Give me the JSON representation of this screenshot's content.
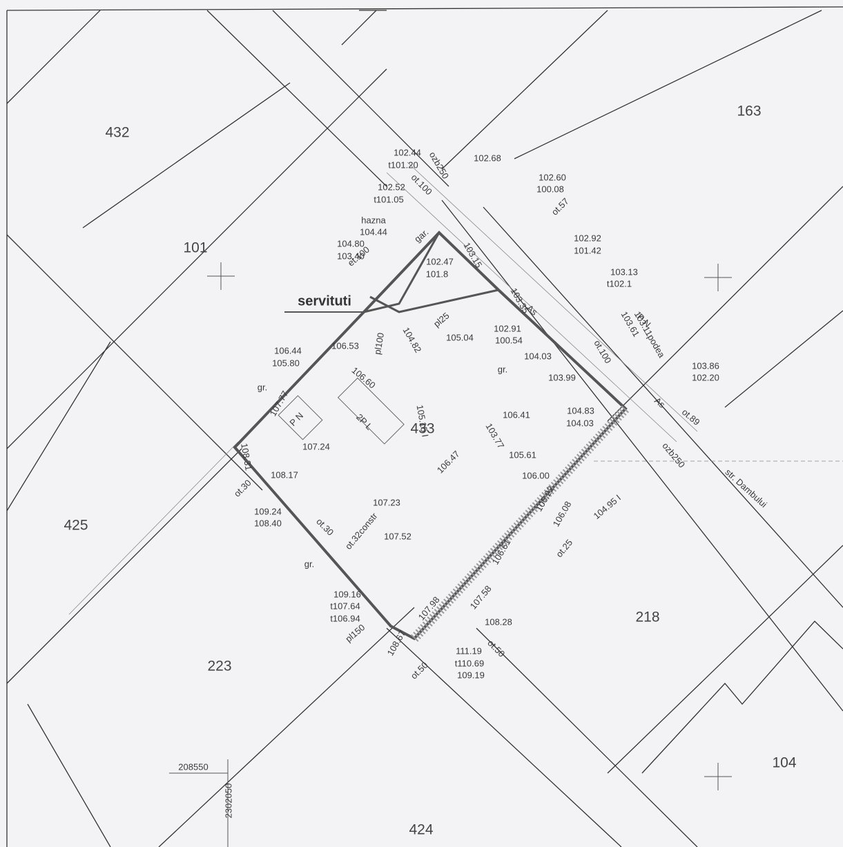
{
  "parcels": [
    "432",
    "163",
    "101",
    "433",
    "425",
    "218",
    "223",
    "104",
    "424"
  ],
  "servitude": "servituti",
  "annotations": [
    "102.44",
    "t101.20",
    "102.68",
    "102.60",
    "100.08",
    "102.52",
    "t101.05",
    "hazna",
    "104.44",
    "104.80",
    "103.40",
    "102.47",
    "101.8",
    "102.92",
    "101.42",
    "103.13",
    "t102.1",
    "102.91",
    "100.54",
    "105.04",
    "106.53",
    "106.44",
    "105.80",
    "104.03",
    "106.60",
    "103.99",
    "103.86",
    "102.20",
    "104.83",
    "104.03",
    "106.41",
    "107.24",
    "105.61",
    "108.17",
    "106.00",
    "109.24",
    "108.40",
    "107.23",
    "107.52",
    "109.16",
    "t107.64",
    "t106.94",
    "108.28",
    "111.19",
    "t110.69",
    "109.19",
    "208550",
    "2302050",
    "gr.",
    "gr.",
    "gr.",
    "ot.30",
    "ot.30",
    "ot.50",
    "ot.50",
    "ot.89",
    "str. Dambului",
    "P N",
    "2P L",
    "P N",
    "ozb250",
    "ot.100",
    "ot.57",
    "103.15",
    "104.82",
    "pl100",
    "pl25",
    "pl150",
    "106.47",
    "103.77",
    "106.22",
    "106.08",
    "104.95 I",
    "108.31",
    "107.77",
    "107.98",
    "107.58",
    "108.67",
    "106.61",
    "105.15 I",
    "ot.32constr",
    "103.35",
    "103.61",
    "gar.",
    "ozb250",
    "ot.100",
    "ot.25",
    "et.100",
    "As",
    "As",
    "103.11podea"
  ]
}
